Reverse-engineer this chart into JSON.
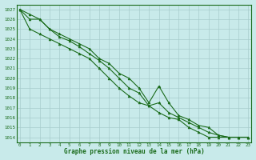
{
  "xlabel": "Graphe pression niveau de la mer (hPa)",
  "x": [
    0,
    1,
    2,
    3,
    4,
    5,
    6,
    7,
    8,
    9,
    10,
    11,
    12,
    13,
    14,
    15,
    16,
    17,
    18,
    19,
    20,
    21,
    22,
    23
  ],
  "line1": [
    1027,
    1026,
    1026,
    1025,
    1024.5,
    1024,
    1023.5,
    1023,
    1022,
    1021.5,
    1020.5,
    1020,
    1019,
    1017.5,
    1019.2,
    1017.5,
    1016.2,
    1015.8,
    1015.2,
    1015,
    1014.2,
    1014,
    1014,
    1014
  ],
  "line2": [
    1027,
    1026.5,
    1026,
    1025,
    1024.2,
    1023.8,
    1023.2,
    1022.5,
    1021.8,
    1021,
    1020,
    1019,
    1018.5,
    1017.2,
    1017.5,
    1016.5,
    1016,
    1015.5,
    1015,
    1014.5,
    1014.2,
    1014,
    1014,
    1014
  ],
  "line3": [
    1027,
    1025,
    1024.5,
    1024,
    1023.5,
    1023,
    1022.5,
    1022,
    1021,
    1020,
    1019,
    1018.2,
    1017.5,
    1017.2,
    1016.5,
    1016,
    1015.8,
    1015,
    1014.5,
    1014,
    1014,
    1014,
    1014,
    1014
  ],
  "ylim": [
    1013.5,
    1027.5
  ],
  "yticks": [
    1014,
    1015,
    1016,
    1017,
    1018,
    1019,
    1020,
    1021,
    1022,
    1023,
    1024,
    1025,
    1026,
    1027
  ],
  "color": "#1a6b1a",
  "bg_color": "#c8eaea",
  "grid_color": "#a8cccc",
  "marker": "^",
  "linewidth": 0.8,
  "markersize": 2.0,
  "tick_fontsize": 4.2,
  "xlabel_fontsize": 5.5
}
